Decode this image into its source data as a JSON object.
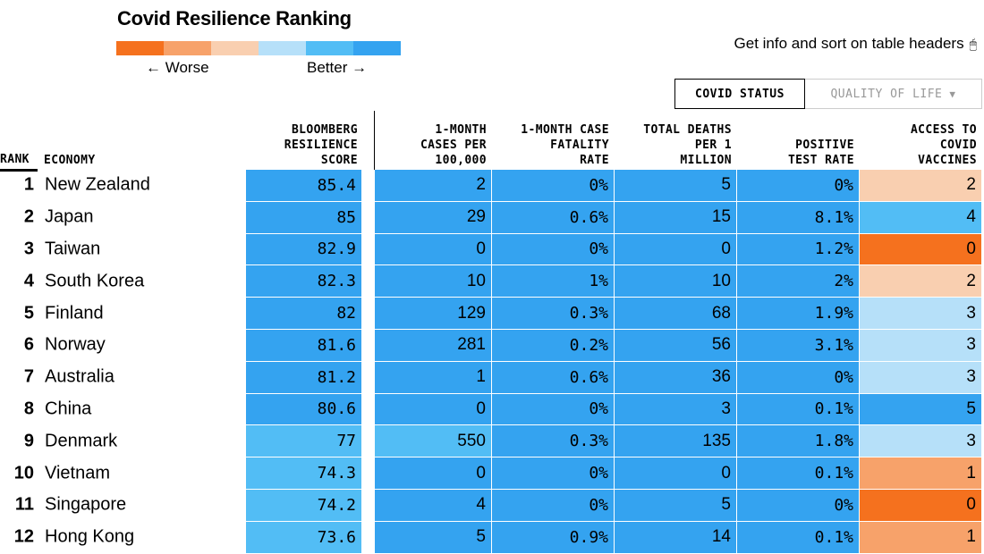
{
  "title": "Covid Resilience Ranking",
  "legend": {
    "worse": "← Worse",
    "better": "Better →",
    "colors": [
      "#f5711e",
      "#f7a26a",
      "#f9cfb0",
      "#b6e0f9",
      "#52bdf5",
      "#34a3f0"
    ]
  },
  "hint": {
    "text": "Get info and sort on table headers",
    "icon": "mouse-icon"
  },
  "toggle": {
    "active": "COVID STATUS",
    "inactive": "QUALITY OF LIFE",
    "inactive_icon": "filter-icon"
  },
  "headers": {
    "rank": "RANK",
    "economy": "ECONOMY",
    "score": "BLOOMBERG\nRESILIENCE\nSCORE",
    "cases": "1-MONTH\nCASES PER\n100,000",
    "fatality": "1-MONTH CASE\nFATALITY\nRATE",
    "deaths": "TOTAL DEATHS\nPER 1\nMILLION",
    "positive": "POSITIVE\nTEST RATE",
    "vaccines": "ACCESS TO\nCOVID\nVACCINES"
  },
  "palette": {
    "blue": "#34a3f0",
    "light_blue": "#52bdf5",
    "pale_blue": "#b6e0f9",
    "peach": "#f9cfb0",
    "light_orange": "#f7a26a",
    "orange": "#f5711e"
  },
  "rows": [
    {
      "rank": "1",
      "economy": "New Zealand",
      "score": "85.4",
      "cases": "2",
      "fatality": "0%",
      "deaths": "5",
      "positive": "0%",
      "vaccines": "2",
      "colors": {
        "score": "blue",
        "cases": "blue",
        "fatality": "blue",
        "deaths": "blue",
        "positive": "blue",
        "vaccines": "peach"
      }
    },
    {
      "rank": "2",
      "economy": "Japan",
      "score": "85",
      "cases": "29",
      "fatality": "0.6%",
      "deaths": "15",
      "positive": "8.1%",
      "vaccines": "4",
      "colors": {
        "score": "blue",
        "cases": "blue",
        "fatality": "blue",
        "deaths": "blue",
        "positive": "blue",
        "vaccines": "light_blue"
      }
    },
    {
      "rank": "3",
      "economy": "Taiwan",
      "score": "82.9",
      "cases": "0",
      "fatality": "0%",
      "deaths": "0",
      "positive": "1.2%",
      "vaccines": "0",
      "colors": {
        "score": "blue",
        "cases": "blue",
        "fatality": "blue",
        "deaths": "blue",
        "positive": "blue",
        "vaccines": "orange"
      }
    },
    {
      "rank": "4",
      "economy": "South Korea",
      "score": "82.3",
      "cases": "10",
      "fatality": "1%",
      "deaths": "10",
      "positive": "2%",
      "vaccines": "2",
      "colors": {
        "score": "blue",
        "cases": "blue",
        "fatality": "blue",
        "deaths": "blue",
        "positive": "blue",
        "vaccines": "peach"
      }
    },
    {
      "rank": "5",
      "economy": "Finland",
      "score": "82",
      "cases": "129",
      "fatality": "0.3%",
      "deaths": "68",
      "positive": "1.9%",
      "vaccines": "3",
      "colors": {
        "score": "blue",
        "cases": "blue",
        "fatality": "blue",
        "deaths": "blue",
        "positive": "blue",
        "vaccines": "pale_blue"
      }
    },
    {
      "rank": "6",
      "economy": "Norway",
      "score": "81.6",
      "cases": "281",
      "fatality": "0.2%",
      "deaths": "56",
      "positive": "3.1%",
      "vaccines": "3",
      "colors": {
        "score": "blue",
        "cases": "blue",
        "fatality": "blue",
        "deaths": "blue",
        "positive": "blue",
        "vaccines": "pale_blue"
      }
    },
    {
      "rank": "7",
      "economy": "Australia",
      "score": "81.2",
      "cases": "1",
      "fatality": "0.6%",
      "deaths": "36",
      "positive": "0%",
      "vaccines": "3",
      "colors": {
        "score": "blue",
        "cases": "blue",
        "fatality": "blue",
        "deaths": "blue",
        "positive": "blue",
        "vaccines": "pale_blue"
      }
    },
    {
      "rank": "8",
      "economy": "China",
      "score": "80.6",
      "cases": "0",
      "fatality": "0%",
      "deaths": "3",
      "positive": "0.1%",
      "vaccines": "5",
      "colors": {
        "score": "blue",
        "cases": "blue",
        "fatality": "blue",
        "deaths": "blue",
        "positive": "blue",
        "vaccines": "blue"
      }
    },
    {
      "rank": "9",
      "economy": "Denmark",
      "score": "77",
      "cases": "550",
      "fatality": "0.3%",
      "deaths": "135",
      "positive": "1.8%",
      "vaccines": "3",
      "colors": {
        "score": "light_blue",
        "cases": "light_blue",
        "fatality": "blue",
        "deaths": "blue",
        "positive": "blue",
        "vaccines": "pale_blue"
      }
    },
    {
      "rank": "10",
      "economy": "Vietnam",
      "score": "74.3",
      "cases": "0",
      "fatality": "0%",
      "deaths": "0",
      "positive": "0.1%",
      "vaccines": "1",
      "colors": {
        "score": "light_blue",
        "cases": "blue",
        "fatality": "blue",
        "deaths": "blue",
        "positive": "blue",
        "vaccines": "light_orange"
      }
    },
    {
      "rank": "11",
      "economy": "Singapore",
      "score": "74.2",
      "cases": "4",
      "fatality": "0%",
      "deaths": "5",
      "positive": "0%",
      "vaccines": "0",
      "colors": {
        "score": "light_blue",
        "cases": "blue",
        "fatality": "blue",
        "deaths": "blue",
        "positive": "blue",
        "vaccines": "orange"
      }
    },
    {
      "rank": "12",
      "economy": "Hong Kong",
      "score": "73.6",
      "cases": "5",
      "fatality": "0.9%",
      "deaths": "14",
      "positive": "0.1%",
      "vaccines": "1",
      "colors": {
        "score": "light_blue",
        "cases": "blue",
        "fatality": "blue",
        "deaths": "blue",
        "positive": "blue",
        "vaccines": "light_orange"
      }
    }
  ]
}
